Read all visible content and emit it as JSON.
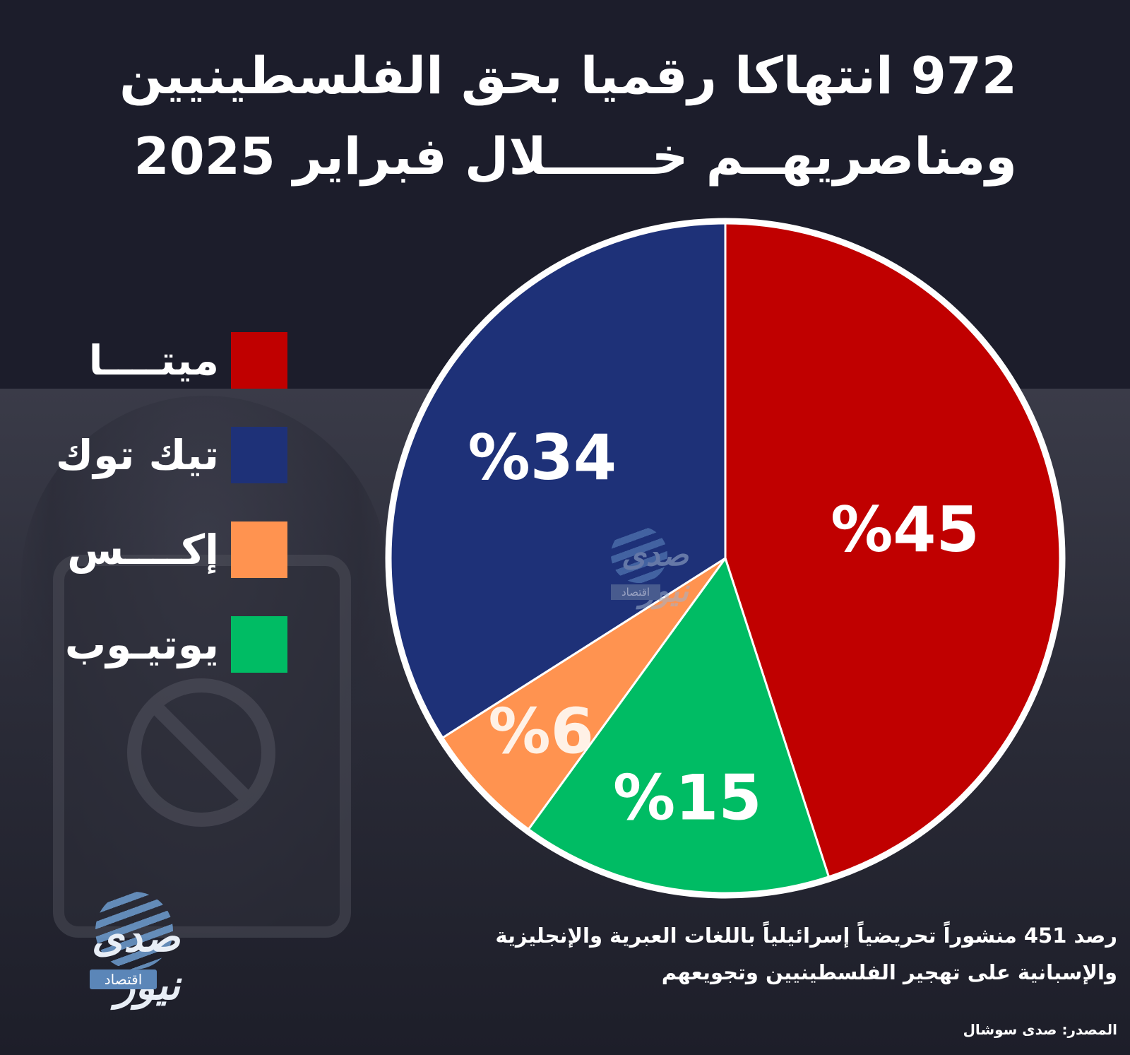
{
  "title": {
    "line1": "972 انتهاكا رقميا بحق الفلسطينيين",
    "line2": "ومناصريهــم خــــــلال فبراير 2025"
  },
  "chart_data": {
    "type": "pie",
    "title": "972 انتهاكا رقميا بحق الفلسطينيين ومناصريهم خلال فبراير 2025",
    "slices": [
      {
        "name": "ميتا",
        "value": 45,
        "label": "%45",
        "color": "#c00000"
      },
      {
        "name": "يوتيوب",
        "value": 15,
        "label": "%15",
        "color": "#00bc64"
      },
      {
        "name": "إكس",
        "value": 6,
        "label": "%6",
        "color": "#ff9350"
      },
      {
        "name": "تيك توك",
        "value": 34,
        "label": "%34",
        "color": "#1e3178"
      }
    ],
    "legend_position": "left"
  },
  "legend": [
    {
      "label": "ميتــــا",
      "color": "#c00000"
    },
    {
      "label": "تيك توك",
      "color": "#1e3178"
    },
    {
      "label": "إكــــس",
      "color": "#ff9350"
    },
    {
      "label": "يوتيـوب",
      "color": "#00bc64"
    }
  ],
  "watermark": {
    "text": "صدى نيوز",
    "tag": "اقتصاد"
  },
  "logo": {
    "text": "صدى نيوز",
    "tag": "اقتصاد"
  },
  "note": {
    "line1": "رصد 451 منشوراً تحريضياً إسرائيلياً باللغات العبرية والإنجليزية",
    "line2": "والإسبانية على تهجير الفلسطينيين وتجويعهم"
  },
  "source": "المصدر: صدى سوشال"
}
